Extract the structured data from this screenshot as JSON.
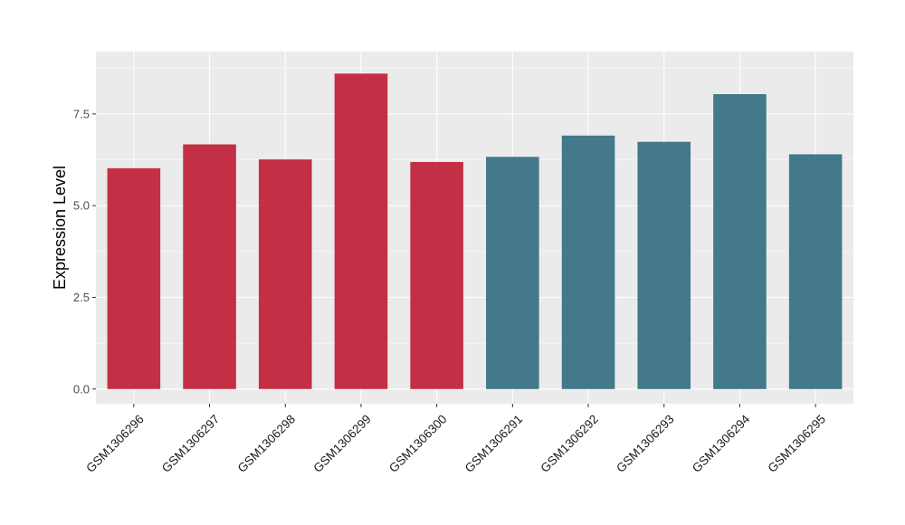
{
  "chart_data": {
    "type": "bar",
    "title": "",
    "xlabel": "",
    "ylabel": "Expression Level",
    "categories": [
      "GSM1306296",
      "GSM1306297",
      "GSM1306298",
      "GSM1306299",
      "GSM1306300",
      "GSM1306291",
      "GSM1306292",
      "GSM1306293",
      "GSM1306294",
      "GSM1306295"
    ],
    "values": [
      6.02,
      6.67,
      6.26,
      8.6,
      6.19,
      6.33,
      6.91,
      6.74,
      8.04,
      6.4
    ],
    "bar_colors": [
      "#c33046",
      "#c33046",
      "#c33046",
      "#c33046",
      "#c33046",
      "#43798a",
      "#43798a",
      "#43798a",
      "#43798a",
      "#43798a"
    ],
    "ylim": [
      -0.4,
      9.2
    ],
    "yticks": [
      0.0,
      2.5,
      5.0,
      7.5
    ],
    "ytick_labels": [
      "0.0",
      "2.5",
      "5.0",
      "7.5"
    ],
    "grid": true,
    "panel_background": "#ebebeb",
    "gridline_color": "#ffffff",
    "legend": "none"
  }
}
